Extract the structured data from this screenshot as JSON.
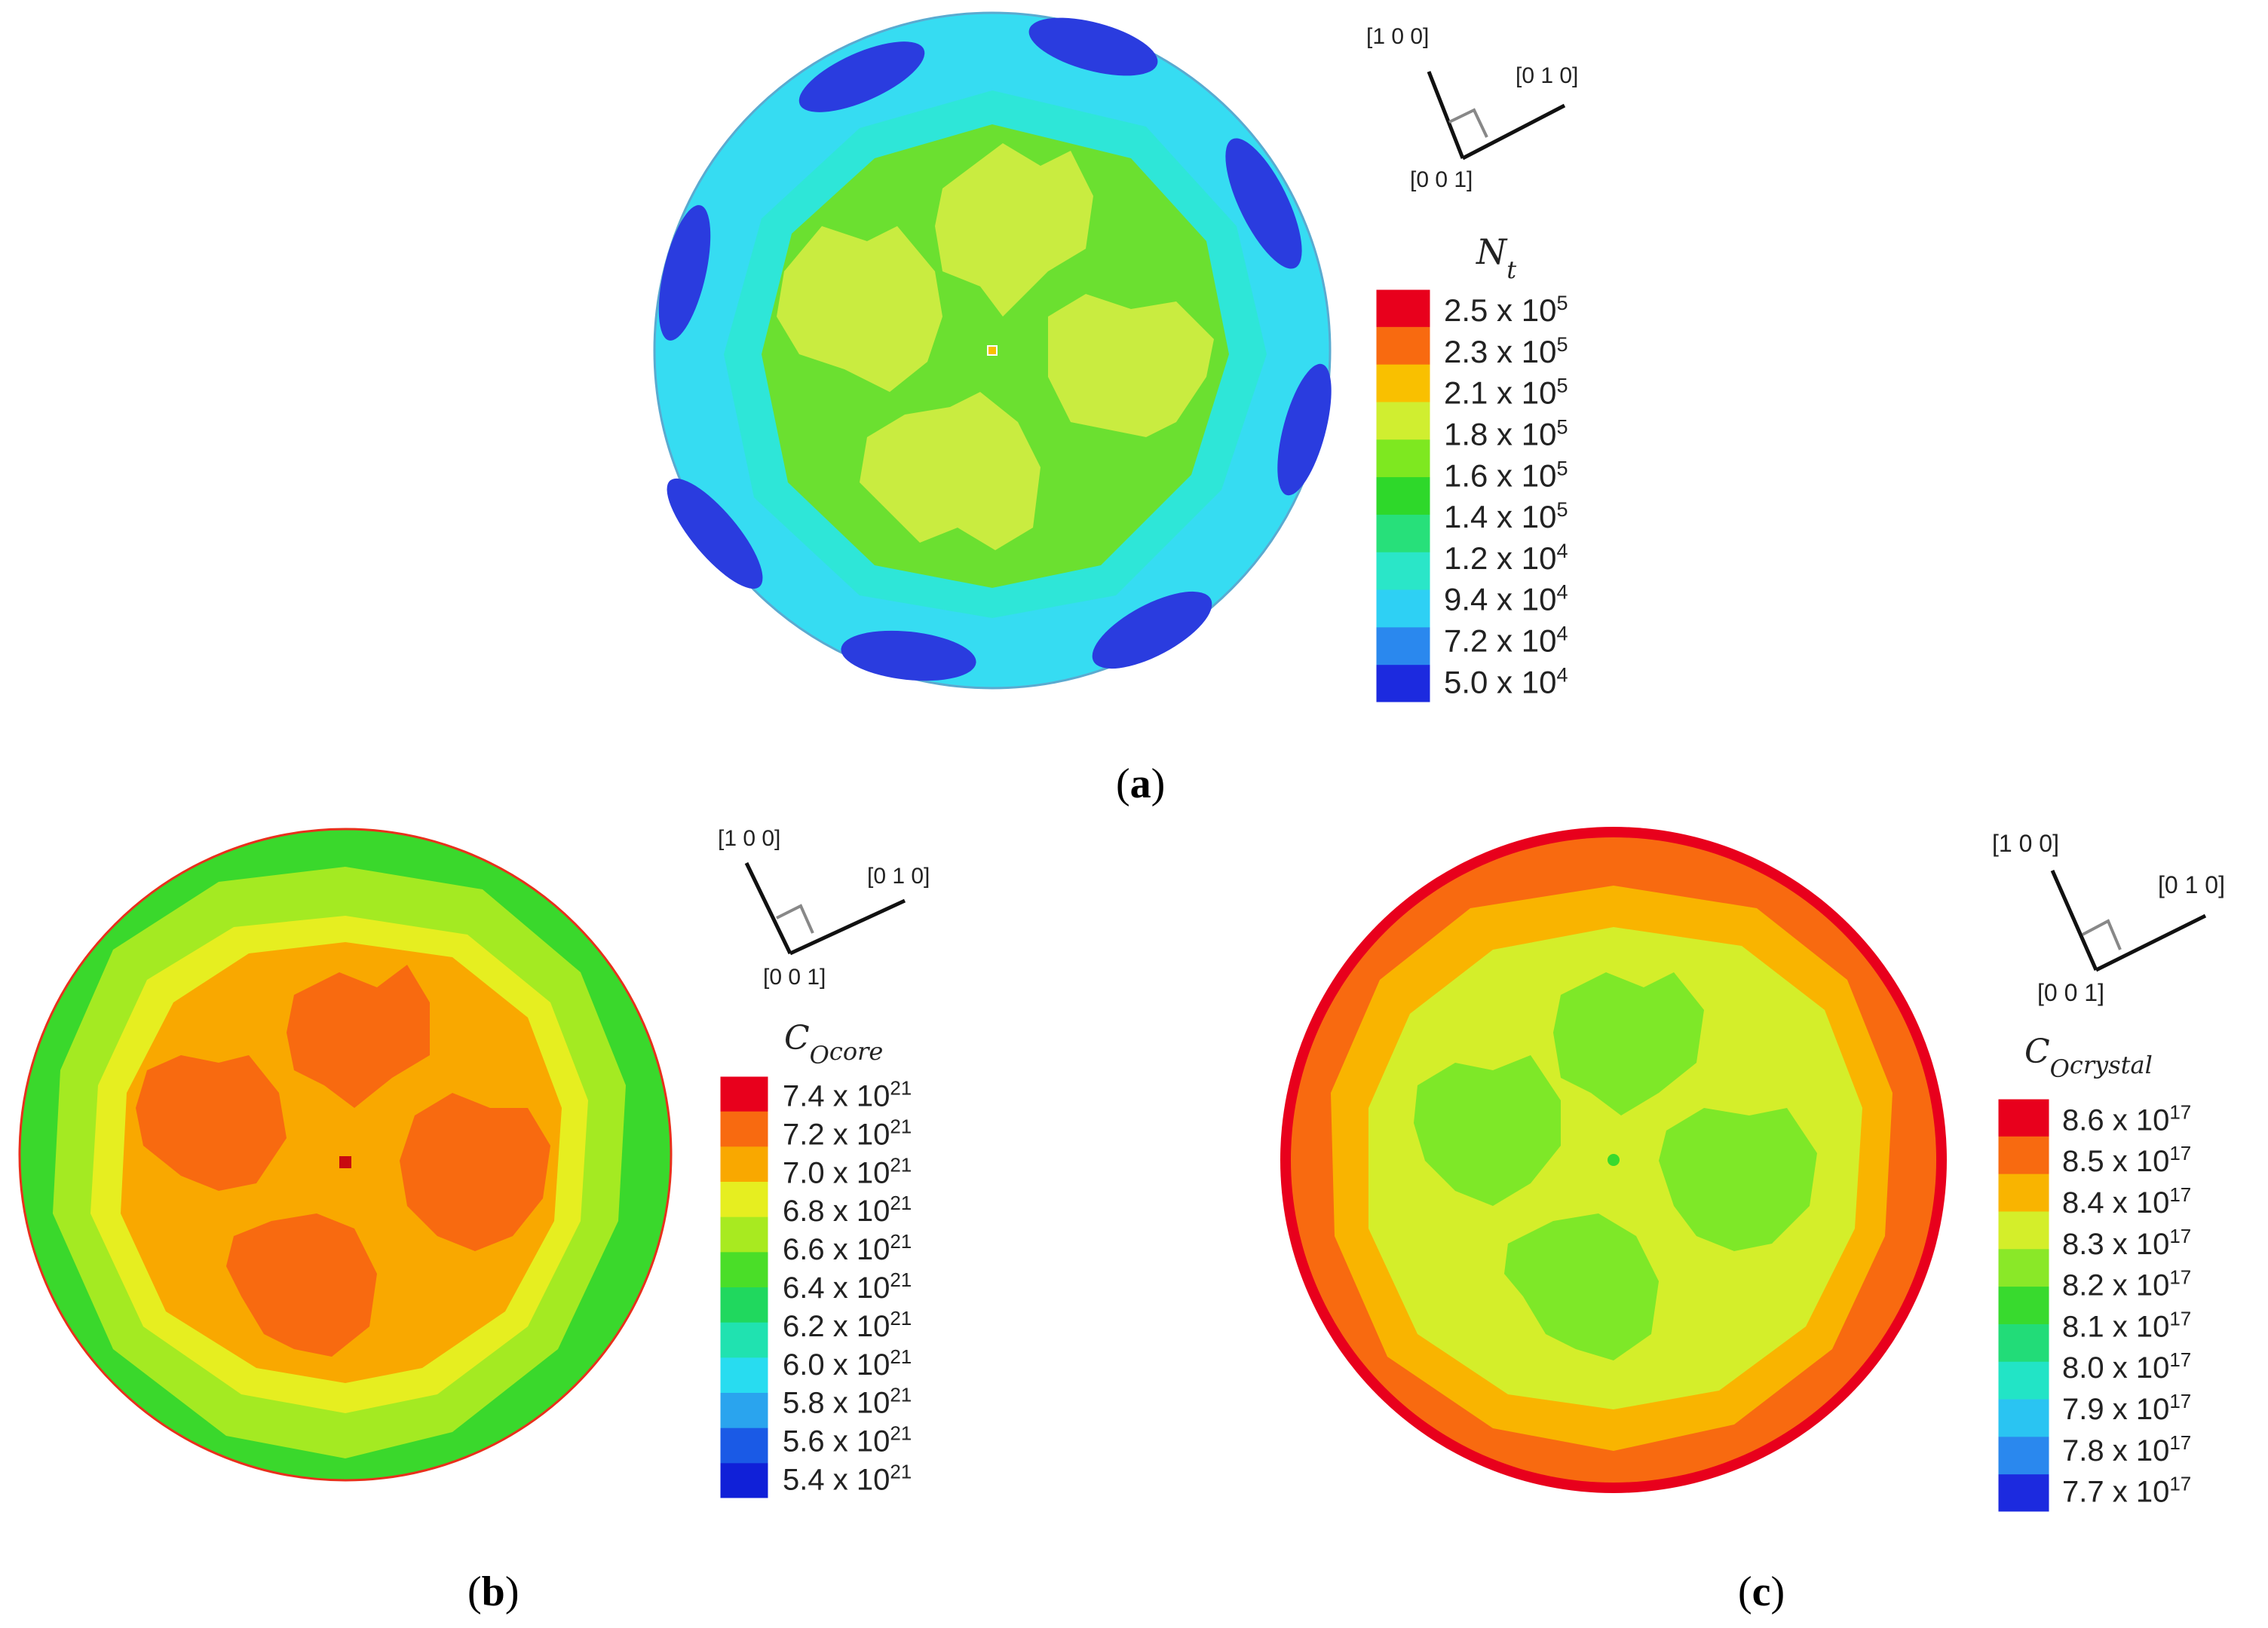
{
  "panels": [
    {
      "id": "a",
      "caption": "a",
      "orientation_labels": [
        "[1 0 0]",
        "[0 1 0]",
        "[0 0 1]"
      ],
      "legend": {
        "title_main": "N",
        "title_sub": "t",
        "colors": [
          "#e8001c",
          "#f86a10",
          "#f9c000",
          "#d0ee30",
          "#7ee820",
          "#2ed82a",
          "#27e07a",
          "#2ae6c8",
          "#2ed0f4",
          "#2a88ee",
          "#1c2adf"
        ],
        "labels": [
          {
            "mantissa": "2.5",
            "exp": "5"
          },
          {
            "mantissa": "2.3",
            "exp": "5"
          },
          {
            "mantissa": "2.1",
            "exp": "5"
          },
          {
            "mantissa": "1.8",
            "exp": "5"
          },
          {
            "mantissa": "1.6",
            "exp": "5"
          },
          {
            "mantissa": "1.4",
            "exp": "5"
          },
          {
            "mantissa": "1.2",
            "exp": "4"
          },
          {
            "mantissa": "9.4",
            "exp": "4"
          },
          {
            "mantissa": "7.2",
            "exp": "4"
          },
          {
            "mantissa": "5.0",
            "exp": "4"
          }
        ]
      }
    },
    {
      "id": "b",
      "caption": "b",
      "orientation_labels": [
        "[1 0 0]",
        "[0 1 0]",
        "[0 0 1]"
      ],
      "legend": {
        "title_main": "C",
        "title_sub": "O",
        "title_subsub": "core",
        "colors": [
          "#e8001c",
          "#f86a10",
          "#f9a800",
          "#e6ee20",
          "#a8ea20",
          "#4ade28",
          "#20d85e",
          "#20e2b0",
          "#28dcf0",
          "#2aa4ee",
          "#1a5ae6",
          "#1020d8"
        ],
        "labels": [
          {
            "mantissa": "7.4",
            "exp": "21"
          },
          {
            "mantissa": "7.2",
            "exp": "21"
          },
          {
            "mantissa": "7.0",
            "exp": "21"
          },
          {
            "mantissa": "6.8",
            "exp": "21"
          },
          {
            "mantissa": "6.6",
            "exp": "21"
          },
          {
            "mantissa": "6.4",
            "exp": "21"
          },
          {
            "mantissa": "6.2",
            "exp": "21"
          },
          {
            "mantissa": "6.0",
            "exp": "21"
          },
          {
            "mantissa": "5.8",
            "exp": "21"
          },
          {
            "mantissa": "5.6",
            "exp": "21"
          },
          {
            "mantissa": "5.4",
            "exp": "21"
          }
        ]
      }
    },
    {
      "id": "c",
      "caption": "c",
      "orientation_labels": [
        "[1 0 0]",
        "[0 1 0]",
        "[0 0 1]"
      ],
      "legend": {
        "title_main": "C",
        "title_sub": "O",
        "title_subsub": "crystal",
        "colors": [
          "#e8001c",
          "#f86a10",
          "#f9b400",
          "#d4ee2a",
          "#8ae828",
          "#38da2e",
          "#22dc78",
          "#22e4c6",
          "#2ac4f2",
          "#2a88ee",
          "#1c2adf"
        ],
        "labels": [
          {
            "mantissa": "8.6",
            "exp": "17"
          },
          {
            "mantissa": "8.5",
            "exp": "17"
          },
          {
            "mantissa": "8.4",
            "exp": "17"
          },
          {
            "mantissa": "8.3",
            "exp": "17"
          },
          {
            "mantissa": "8.2",
            "exp": "17"
          },
          {
            "mantissa": "8.1",
            "exp": "17"
          },
          {
            "mantissa": "8.0",
            "exp": "17"
          },
          {
            "mantissa": "7.9",
            "exp": "17"
          },
          {
            "mantissa": "7.8",
            "exp": "17"
          },
          {
            "mantissa": "7.7",
            "exp": "17"
          }
        ]
      }
    }
  ],
  "times_symbol": "x",
  "base_ten": "10"
}
